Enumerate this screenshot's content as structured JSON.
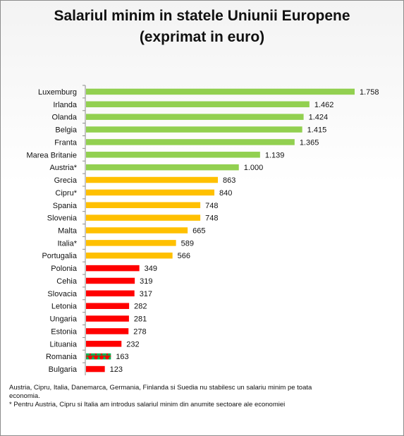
{
  "chart_data": {
    "type": "bar",
    "orientation": "horizontal",
    "title_line1": "Salariul minim in statele Uniunii Europene",
    "title_line2": "(exprimat in euro)",
    "categories": [
      "Luxemburg",
      "Irlanda",
      "Olanda",
      "Belgia",
      "Franta",
      "Marea Britanie",
      "Austria*",
      "Grecia",
      "Cipru*",
      "Spania",
      "Slovenia",
      "Malta",
      "Italia*",
      "Portugalia",
      "Polonia",
      "Cehia",
      "Slovacia",
      "Letonia",
      "Ungaria",
      "Estonia",
      "Lituania",
      "Romania",
      "Bulgaria"
    ],
    "values": [
      1758,
      1462,
      1424,
      1415,
      1365,
      1139,
      1000,
      863,
      840,
      748,
      748,
      665,
      589,
      566,
      349,
      319,
      317,
      282,
      281,
      278,
      232,
      163,
      123
    ],
    "data_labels": [
      "1.758",
      "1.462",
      "1.424",
      "1.415",
      "1.365",
      "1.139",
      "1.000",
      "863",
      "840",
      "748",
      "748",
      "665",
      "589",
      "566",
      "349",
      "319",
      "317",
      "282",
      "281",
      "278",
      "232",
      "163",
      "123"
    ],
    "groups": [
      "green",
      "green",
      "green",
      "green",
      "green",
      "green",
      "green",
      "yellow",
      "yellow",
      "yellow",
      "yellow",
      "yellow",
      "yellow",
      "yellow",
      "red",
      "red",
      "red",
      "red",
      "red",
      "red",
      "red",
      "mixed",
      "red"
    ],
    "colors": {
      "green": "#92d050",
      "yellow": "#ffc000",
      "red": "#ff0000",
      "mixed_pattern": "#00b050"
    },
    "xlim": [
      0,
      1900
    ],
    "grid": false,
    "legend": "none"
  },
  "footnotes": {
    "line1": "Austria, Cipru, Italia, Danemarca, Germania, Finlanda si Suedia nu  stabilesc  un salariu minim pe toata",
    "line2": " economia.",
    "line3": "* Pentru Austria, Cipru si Italia am introdus salariul minim din anumite sectoare ale economiei"
  }
}
